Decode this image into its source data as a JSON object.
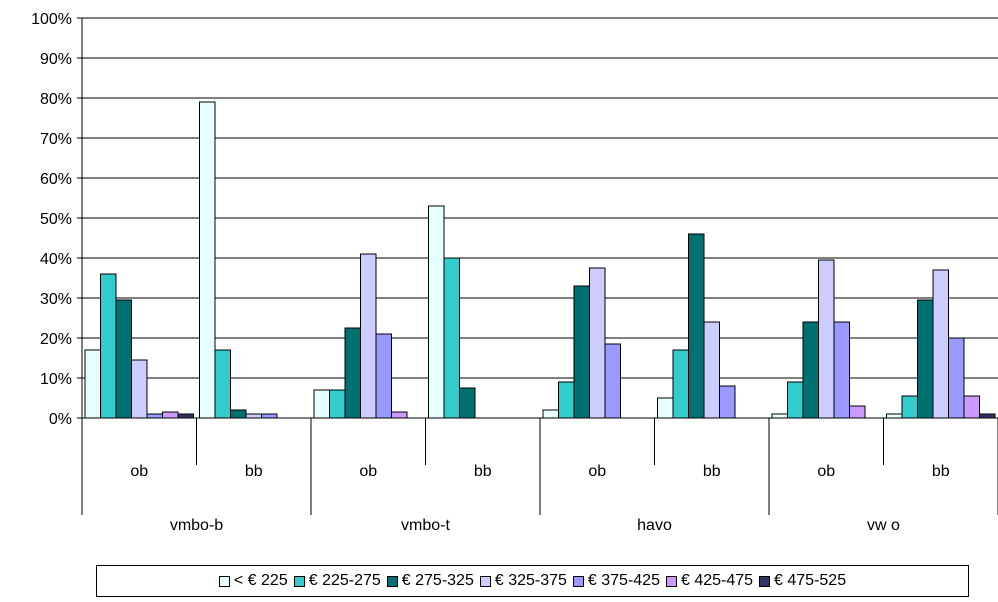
{
  "chart_data": {
    "type": "bar",
    "ylim": [
      0,
      100
    ],
    "yticks": [
      "0%",
      "10%",
      "20%",
      "30%",
      "40%",
      "50%",
      "60%",
      "70%",
      "80%",
      "90%",
      "100%"
    ],
    "grid": true,
    "legend_position": "bottom",
    "groups": [
      {
        "label": "vmbo-b",
        "categories": [
          "ob",
          "bb"
        ]
      },
      {
        "label": "vmbo-t",
        "categories": [
          "ob",
          "bb"
        ]
      },
      {
        "label": "havo",
        "categories": [
          "ob",
          "bb"
        ]
      },
      {
        "label": "vw o",
        "categories": [
          "ob",
          "bb"
        ]
      }
    ],
    "categories": [
      "vmbo-b ob",
      "vmbo-b bb",
      "vmbo-t ob",
      "vmbo-t bb",
      "havo ob",
      "havo bb",
      "vwo ob",
      "vwo bb"
    ],
    "series": [
      {
        "name": "< € 225",
        "color": "#e6ffff",
        "values": [
          17,
          79,
          7,
          53,
          2,
          5,
          1,
          1
        ]
      },
      {
        "name": "€ 225-275",
        "color": "#33cccc",
        "values": [
          36,
          17,
          7,
          40,
          9,
          17,
          9,
          5.5
        ]
      },
      {
        "name": "€ 275-325",
        "color": "#007070",
        "values": [
          29.5,
          2,
          22.5,
          7.5,
          33,
          46,
          24,
          29.5
        ]
      },
      {
        "name": "€ 325-375",
        "color": "#ccccff",
        "values": [
          14.5,
          1,
          41,
          0,
          37.5,
          24,
          39.5,
          37
        ]
      },
      {
        "name": "€ 375-425",
        "color": "#9999ff",
        "values": [
          1,
          1,
          21,
          0,
          18.5,
          8,
          24,
          20
        ]
      },
      {
        "name": "€ 425-475",
        "color": "#cc99ff",
        "values": [
          1.5,
          0,
          1.5,
          0,
          0,
          0,
          3,
          5.5
        ]
      },
      {
        "name": "€ 475-525",
        "color": "#333366",
        "values": [
          1,
          0,
          0,
          0,
          0,
          0,
          0,
          1
        ]
      }
    ]
  }
}
